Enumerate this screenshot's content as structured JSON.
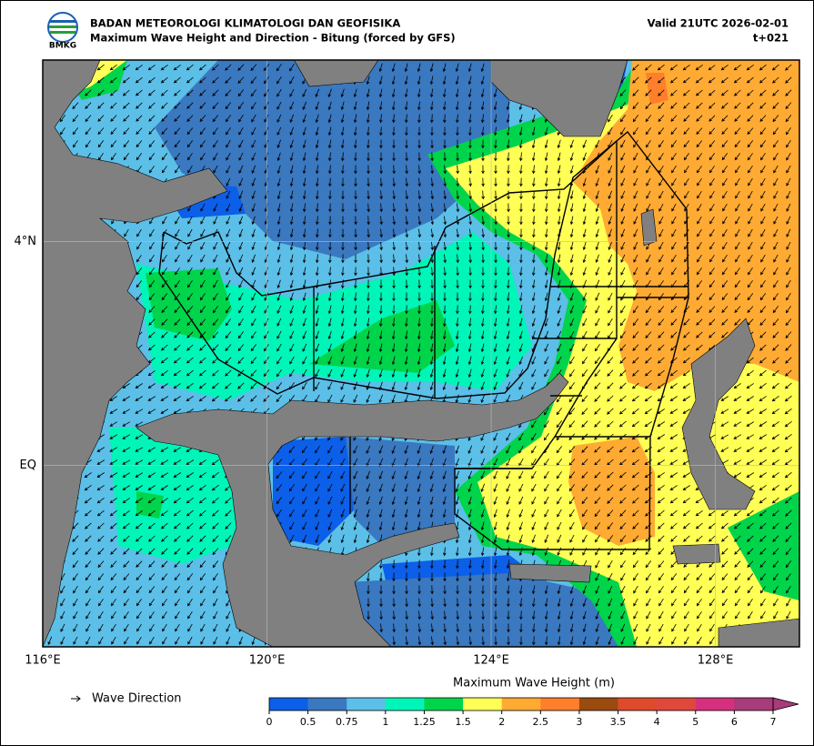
{
  "header": {
    "logo_text": "BMKG",
    "title": "BADAN METEOROLOGI KLIMATOLOGI DAN GEOFISIKA",
    "subtitle": "Maximum Wave Height and Direction - Bitung (forced by GFS)",
    "valid": "Valid 21UTC 2026-02-01",
    "lead": "t+021"
  },
  "map": {
    "xlim": [
      116,
      129.5
    ],
    "ylim": [
      -3.25,
      7.25
    ],
    "xticks": [
      {
        "value": 116,
        "label": "116°E"
      },
      {
        "value": 120,
        "label": "120°E"
      },
      {
        "value": 124,
        "label": "124°E"
      },
      {
        "value": 128,
        "label": "128°E"
      }
    ],
    "yticks": [
      {
        "value": 0,
        "label": "EQ"
      },
      {
        "value": 4,
        "label": "4°N"
      }
    ]
  },
  "legend": {
    "arrow_label": "Wave Direction"
  },
  "colorbar": {
    "title": "Maximum Wave Height (m)",
    "bounds": [
      0,
      0.5,
      0.75,
      1,
      1.25,
      1.5,
      2,
      2.5,
      3,
      3.5,
      4,
      5,
      6,
      7
    ],
    "colors": [
      "#0c5fe8",
      "#3a78c0",
      "#5bbfe8",
      "#00f5b8",
      "#00d44a",
      "#ffff55",
      "#ffaa33",
      "#ff7f2a",
      "#9b4a10",
      "#e04a2c",
      "#e0483c",
      "#d62f7e",
      "#a83b7a"
    ]
  }
}
